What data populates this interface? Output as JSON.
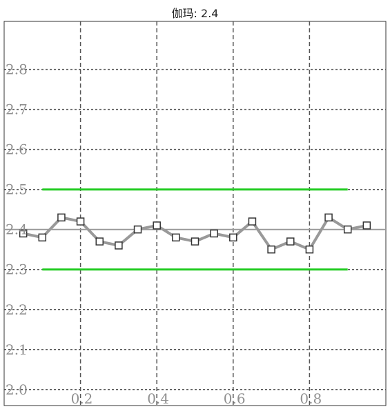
{
  "chart_data": {
    "type": "line",
    "title": "伽玛: 2.4",
    "xlim": [
      0,
      1.0
    ],
    "ylim": [
      1.96,
      2.92
    ],
    "x_ticks": [
      0.2,
      0.4,
      0.6,
      0.8
    ],
    "x_tick_labels": [
      "0.2",
      "0.4",
      "0.6",
      "0.8"
    ],
    "y_ticks": [
      2.0,
      2.1,
      2.2,
      2.3,
      2.4,
      2.5,
      2.6,
      2.7,
      2.8
    ],
    "y_tick_labels": [
      "2.0",
      "2.1",
      "2.2",
      "2.3",
      "2.4",
      "2.5",
      "2.6",
      "2.7",
      "2.8"
    ],
    "grid": true,
    "series": [
      {
        "type": "line",
        "color": "#999999",
        "marker": "square",
        "x": [
          0.05,
          0.1,
          0.15,
          0.2,
          0.25,
          0.3,
          0.35,
          0.4,
          0.45,
          0.5,
          0.55,
          0.6,
          0.65,
          0.7,
          0.75,
          0.8,
          0.85,
          0.9,
          0.95
        ],
        "values": [
          2.39,
          2.38,
          2.43,
          2.42,
          2.37,
          2.36,
          2.4,
          2.41,
          2.38,
          2.37,
          2.39,
          2.38,
          2.42,
          2.35,
          2.37,
          2.35,
          2.43,
          2.4,
          2.41
        ]
      }
    ],
    "reference_lines": [
      {
        "value": 2.4,
        "color": "#999999",
        "x_range": [
          0.0,
          1.0
        ]
      },
      {
        "value": 2.5,
        "color": "#22cc22",
        "x_range": [
          0.1,
          0.9
        ]
      },
      {
        "value": 2.3,
        "color": "#22cc22",
        "x_range": [
          0.1,
          0.9
        ]
      }
    ]
  }
}
